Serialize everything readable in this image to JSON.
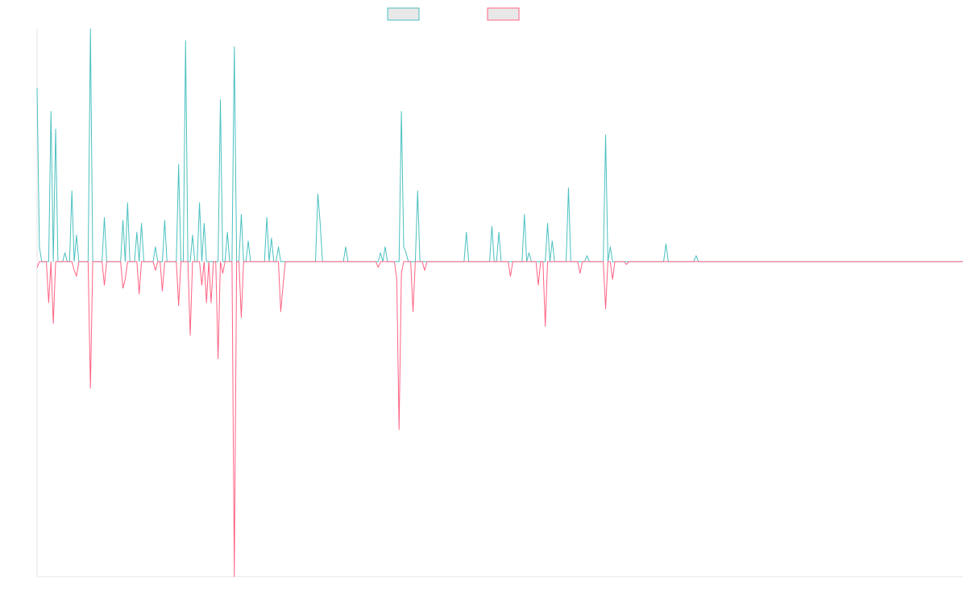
{
  "chart_data": {
    "type": "line",
    "title": "",
    "xlabel": "",
    "ylabel": "",
    "legend_position": "top-center",
    "grid": false,
    "ylim": [
      -1.07,
      0.79
    ],
    "x_points": 400,
    "series": [
      {
        "name": "",
        "color": "#4bc0c0",
        "legend_fill": "#e8e8e8",
        "spikes": [
          [
            0,
            0.59
          ],
          [
            1,
            0.05
          ],
          [
            6,
            0.51
          ],
          [
            8,
            0.45
          ],
          [
            12,
            0.03
          ],
          [
            15,
            0.24
          ],
          [
            17,
            0.09
          ],
          [
            23,
            0.79
          ],
          [
            29,
            0.15
          ],
          [
            37,
            0.14
          ],
          [
            39,
            0.2
          ],
          [
            43,
            0.1
          ],
          [
            45,
            0.13
          ],
          [
            51,
            0.05
          ],
          [
            55,
            0.14
          ],
          [
            61,
            0.33
          ],
          [
            64,
            0.75
          ],
          [
            67,
            0.09
          ],
          [
            70,
            0.2
          ],
          [
            72,
            0.13
          ],
          [
            79,
            0.55
          ],
          [
            82,
            0.1
          ],
          [
            85,
            0.73
          ],
          [
            88,
            0.16
          ],
          [
            91,
            0.07
          ],
          [
            99,
            0.15
          ],
          [
            101,
            0.08
          ],
          [
            104,
            0.05
          ],
          [
            121,
            0.23
          ],
          [
            122,
            0.13
          ],
          [
            133,
            0.05
          ],
          [
            148,
            0.03
          ],
          [
            150,
            0.05
          ],
          [
            158,
            0.05
          ],
          [
            157,
            0.51
          ],
          [
            159,
            0.03
          ],
          [
            164,
            0.24
          ],
          [
            185,
            0.1
          ],
          [
            196,
            0.12
          ],
          [
            199,
            0.1
          ],
          [
            210,
            0.16
          ],
          [
            212,
            0.03
          ],
          [
            220,
            0.13
          ],
          [
            222,
            0.07
          ],
          [
            229,
            0.25
          ],
          [
            237,
            0.02
          ],
          [
            245,
            0.43
          ],
          [
            247,
            0.05
          ],
          [
            271,
            0.06
          ],
          [
            284,
            0.02
          ]
        ]
      },
      {
        "name": "",
        "color": "#ff6384",
        "legend_fill": "#e8e8e8",
        "spikes": [
          [
            0,
            -0.02
          ],
          [
            5,
            -0.14
          ],
          [
            7,
            -0.21
          ],
          [
            16,
            -0.03
          ],
          [
            17,
            -0.05
          ],
          [
            23,
            -0.43
          ],
          [
            29,
            -0.08
          ],
          [
            37,
            -0.09
          ],
          [
            38,
            -0.06
          ],
          [
            44,
            -0.11
          ],
          [
            51,
            -0.03
          ],
          [
            54,
            -0.1
          ],
          [
            61,
            -0.15
          ],
          [
            66,
            -0.25
          ],
          [
            71,
            -0.08
          ],
          [
            73,
            -0.14
          ],
          [
            75,
            -0.14
          ],
          [
            78,
            -0.33
          ],
          [
            80,
            -0.04
          ],
          [
            85,
            -1.07
          ],
          [
            88,
            -0.19
          ],
          [
            105,
            -0.17
          ],
          [
            106,
            -0.08
          ],
          [
            147,
            -0.02
          ],
          [
            155,
            -0.06
          ],
          [
            167,
            -0.03
          ],
          [
            156,
            -0.57
          ],
          [
            157,
            -0.04
          ],
          [
            162,
            -0.17
          ],
          [
            204,
            -0.05
          ],
          [
            216,
            -0.08
          ],
          [
            219,
            -0.22
          ],
          [
            234,
            -0.04
          ],
          [
            245,
            -0.16
          ],
          [
            248,
            -0.06
          ],
          [
            254,
            -0.01
          ]
        ]
      }
    ]
  }
}
